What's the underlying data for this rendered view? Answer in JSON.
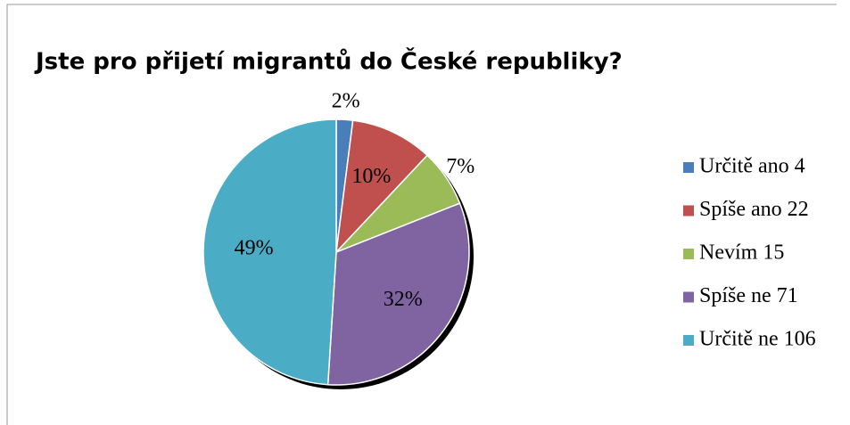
{
  "chart_data": {
    "type": "pie",
    "title": "Jste pro přijetí migrantů do České republiky?",
    "categories": [
      "Určitě ano 4",
      "Spíše ano 22",
      "Nevím 15",
      "Spíše ne 71",
      "Určitě ne 106"
    ],
    "values": [
      2,
      10,
      7,
      32,
      49
    ],
    "value_labels": [
      "2%",
      "10%",
      "7%",
      "32%",
      "49%"
    ],
    "colors": [
      "#4a7ebb",
      "#c0504d",
      "#9bbb59",
      "#8064a2",
      "#4bacc6"
    ],
    "legend": "right"
  }
}
